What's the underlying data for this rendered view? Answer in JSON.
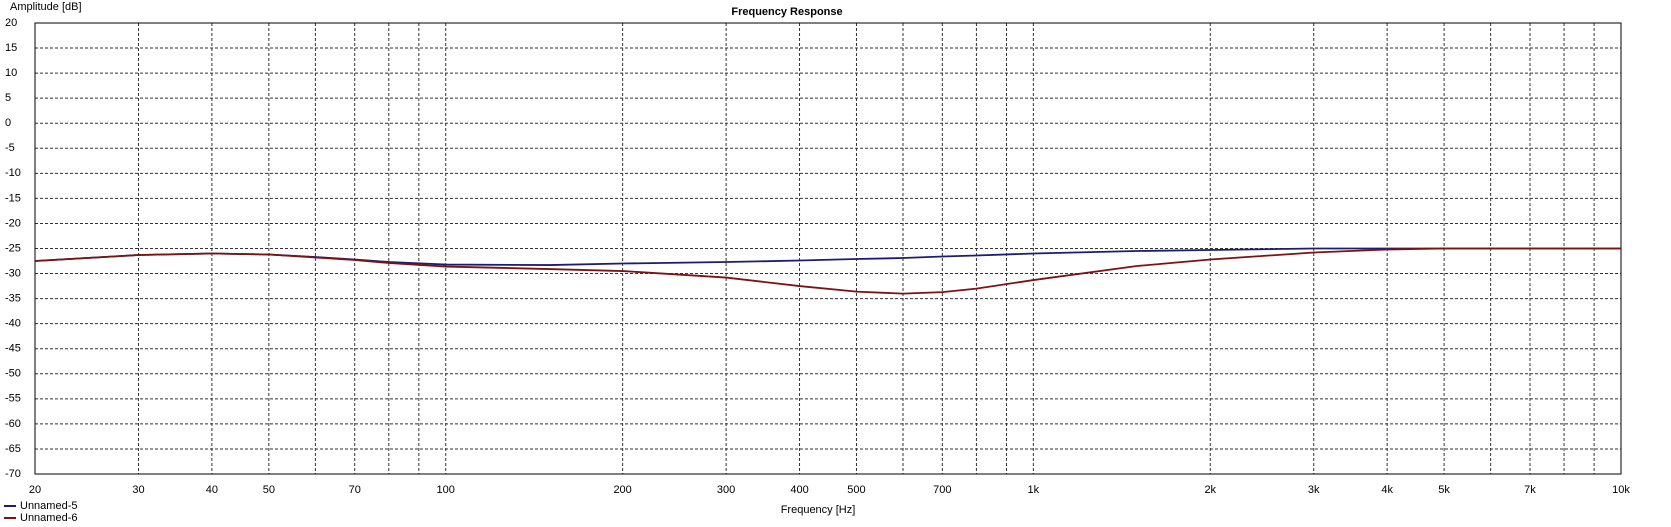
{
  "chart_data": {
    "type": "line",
    "title": "Frequency Response",
    "y_label": "Amplitude [dB]",
    "x_label": "Frequency [Hz]",
    "log_x": true,
    "grid": true,
    "legend": "bottom-left",
    "xlim": [
      20,
      10000
    ],
    "xticks": [
      20,
      30,
      40,
      50,
      70,
      100,
      200,
      300,
      400,
      500,
      700,
      {
        "value": 1000,
        "label": "1k"
      },
      {
        "value": 2000,
        "label": "2k"
      },
      {
        "value": 3000,
        "label": "3k"
      },
      {
        "value": 4000,
        "label": "4k"
      },
      {
        "value": 5000,
        "label": "5k"
      },
      {
        "value": 7000,
        "label": "7k"
      },
      {
        "value": 10000,
        "label": "10k"
      }
    ],
    "xminor": [
      60,
      80,
      90,
      600,
      800,
      900,
      6000,
      8000,
      9000
    ],
    "ylim": [
      -70,
      20
    ],
    "yticks": [
      -70,
      -65,
      -60,
      -55,
      -50,
      -45,
      -40,
      -35,
      -30,
      -25,
      -20,
      -15,
      -10,
      -5,
      0,
      5,
      10,
      15,
      20
    ],
    "x": [
      20,
      30,
      40,
      50,
      60,
      70,
      80,
      100,
      150,
      200,
      300,
      400,
      500,
      600,
      700,
      800,
      1000,
      1500,
      2000,
      3000,
      4000,
      5000,
      7000,
      10000
    ],
    "series": [
      {
        "name": "Unnamed-5",
        "color": "#1c1c70",
        "values": [
          -27.5,
          -26.3,
          -26,
          -26.2,
          -26.7,
          -27.2,
          -27.7,
          -28.2,
          -28.3,
          -28,
          -27.7,
          -27.4,
          -27.1,
          -26.9,
          -26.6,
          -26.4,
          -26,
          -25.5,
          -25.3,
          -25,
          -25,
          -25,
          -25,
          -25
        ]
      },
      {
        "name": "Unnamed-6",
        "color": "#7a1414",
        "values": [
          -27.5,
          -26.3,
          -26,
          -26.2,
          -26.8,
          -27.3,
          -27.9,
          -28.6,
          -29.1,
          -29.5,
          -30.8,
          -32.5,
          -33.6,
          -34,
          -33.7,
          -33,
          -31.3,
          -28.5,
          -27.2,
          -25.8,
          -25.2,
          -25,
          -25,
          -25
        ]
      }
    ]
  }
}
